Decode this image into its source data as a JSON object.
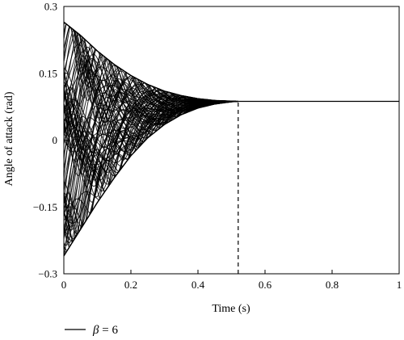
{
  "chart_data": {
    "type": "line",
    "xlabel": "Time (s)",
    "ylabel": "Angle of attack (rad)",
    "xlim": [
      0,
      1
    ],
    "ylim": [
      -0.3,
      0.3
    ],
    "x_ticks": [
      "0",
      "0.2",
      "0.4",
      "0.6",
      "0.8",
      "1"
    ],
    "y_ticks": [
      "0.3",
      "0.15",
      "0",
      "−0.15",
      "−0.3"
    ],
    "grid": false,
    "legend": {
      "position": "bottom-left",
      "symbol": "β",
      "text": " = 6"
    },
    "series": [
      {
        "description_role": "family of angle-of-attack trajectories (multiple initial conditions)",
        "initial_range": [
          -0.26,
          0.265
        ],
        "converged_value": 0.087,
        "convergence_time": 0.52,
        "envelope_upper": {
          "x": [
            0,
            0.05,
            0.1,
            0.15,
            0.2,
            0.25,
            0.3,
            0.35,
            0.4,
            0.45,
            0.5,
            0.52,
            1.0
          ],
          "y": [
            0.265,
            0.235,
            0.2,
            0.17,
            0.145,
            0.125,
            0.11,
            0.1,
            0.093,
            0.089,
            0.0875,
            0.087,
            0.087
          ]
        },
        "envelope_lower": {
          "x": [
            0,
            0.05,
            0.1,
            0.15,
            0.2,
            0.25,
            0.3,
            0.35,
            0.4,
            0.45,
            0.5,
            0.52,
            1.0
          ],
          "y": [
            -0.26,
            -0.2,
            -0.14,
            -0.085,
            -0.035,
            0.005,
            0.035,
            0.057,
            0.072,
            0.081,
            0.086,
            0.087,
            0.087
          ]
        }
      }
    ],
    "annotations": [
      {
        "type": "vertical-dashed-line",
        "x": 0.52,
        "y_from": -0.3,
        "y_to": 0.087
      }
    ],
    "colors": {
      "line": "#000000",
      "axis": "#000000"
    }
  }
}
